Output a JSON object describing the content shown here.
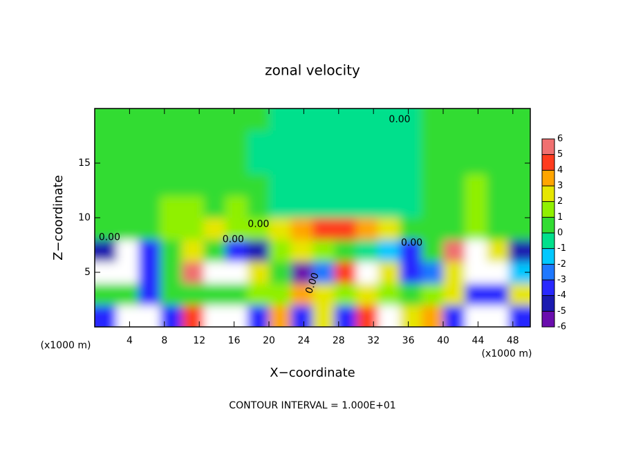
{
  "chart_data": {
    "type": "heatmap",
    "title": "zonal velocity",
    "x_label": "X−coordinate",
    "y_label": "Z−coordinate",
    "x_unit": "(x1000 m)",
    "y_unit": "(x1000 m)",
    "footnote": "CONTOUR INTERVAL = 1.000E+01",
    "xlim": [
      0,
      50
    ],
    "ylim": [
      0,
      20
    ],
    "xticks": [
      4,
      8,
      12,
      16,
      20,
      24,
      28,
      32,
      36,
      40,
      44,
      48
    ],
    "yticks": [
      5,
      10,
      15
    ],
    "x": [
      1.25,
      3.75,
      6.25,
      8.75,
      11.25,
      13.75,
      16.25,
      18.75,
      21.25,
      23.75,
      26.25,
      28.75,
      31.25,
      33.75,
      36.25,
      38.75,
      41.25,
      43.75,
      46.25,
      48.75
    ],
    "y": [
      1,
      3,
      5,
      7,
      9,
      11,
      13,
      15,
      17,
      19
    ],
    "values": [
      [
        -3,
        7,
        7,
        -3,
        5,
        -7,
        -7,
        -3,
        4,
        -3,
        3,
        -3,
        5,
        7,
        3,
        4,
        -3,
        -7,
        -7,
        -3
      ],
      [
        0.5,
        1,
        -3,
        0.5,
        1,
        0.5,
        1,
        1.5,
        2,
        4,
        3,
        2,
        3,
        2,
        1,
        2,
        3,
        -3,
        -3,
        3
      ],
      [
        -7,
        -7,
        -3,
        1,
        6,
        7,
        7,
        3,
        1,
        -5,
        -2,
        5,
        7,
        3,
        -3,
        -2,
        3,
        7,
        7,
        -1
      ],
      [
        -4,
        -7,
        -3,
        1,
        3,
        1,
        -3,
        -4,
        2,
        3,
        2,
        1,
        -0.5,
        -1,
        -3,
        0.5,
        6,
        7,
        3,
        -4
      ],
      [
        0.5,
        0.6,
        0.8,
        1.5,
        2,
        3,
        2,
        1.5,
        2.5,
        4,
        4.5,
        5,
        4,
        3,
        1,
        0.5,
        1,
        1.5,
        1,
        0.5
      ],
      [
        0.8,
        0.8,
        1,
        1.2,
        1.5,
        1,
        1.2,
        0.3,
        -0.3,
        -0.4,
        -0.4,
        -0.5,
        -0.5,
        -0.4,
        -0.2,
        0.4,
        1,
        1.2,
        1,
        0.8
      ],
      [
        0.8,
        0.8,
        0.9,
        1,
        1,
        0.9,
        0.5,
        0.2,
        -0.3,
        -0.5,
        -0.6,
        -0.7,
        -0.7,
        -0.5,
        -0.3,
        0.4,
        0.9,
        1.1,
        1,
        0.8
      ],
      [
        0.7,
        0.7,
        0.8,
        0.8,
        0.8,
        0.8,
        0.3,
        -0.3,
        -0.4,
        -0.6,
        -0.7,
        -0.8,
        -0.8,
        -0.7,
        -0.4,
        0.5,
        0.8,
        1,
        0.8,
        0.7
      ],
      [
        0.6,
        0.6,
        0.6,
        0.6,
        0.6,
        0.6,
        0.4,
        -0.2,
        -0.3,
        -0.5,
        -0.6,
        -0.7,
        -0.7,
        -0.6,
        -0.5,
        0.3,
        0.6,
        0.8,
        0.6,
        0.6
      ],
      [
        0.5,
        0.5,
        0.5,
        0.5,
        0.5,
        0.5,
        0.5,
        0.3,
        -0.2,
        -0.3,
        -0.4,
        -0.5,
        -0.5,
        -0.5,
        -0.3,
        0.3,
        0.5,
        0.5,
        0.5,
        0.5
      ]
    ],
    "colorbar_ticks": [
      -6,
      -5,
      -4,
      -3,
      -2,
      -1,
      0,
      1,
      2,
      3,
      4,
      5,
      6
    ],
    "colorbar_colors": [
      "#6a0dad",
      "#1a1ab0",
      "#2828ff",
      "#1e78ff",
      "#00c8ff",
      "#00e08c",
      "#32dc32",
      "#90f000",
      "#e6e600",
      "#ffa500",
      "#ff3c1e",
      "#f07070"
    ],
    "overflow_color": "#ffffff",
    "contour_labels": [
      {
        "text": "0.00",
        "x": 35,
        "y": 19
      },
      {
        "text": "0.00",
        "x": 18.8,
        "y": 9.4
      },
      {
        "text": "0.00",
        "x": 1.7,
        "y": 8.2
      },
      {
        "text": "0.00",
        "x": 15.9,
        "y": 8
      },
      {
        "text": "0.00",
        "x": 36.4,
        "y": 7.7
      },
      {
        "text": "0.00",
        "x": 25,
        "y": 4
      }
    ]
  }
}
